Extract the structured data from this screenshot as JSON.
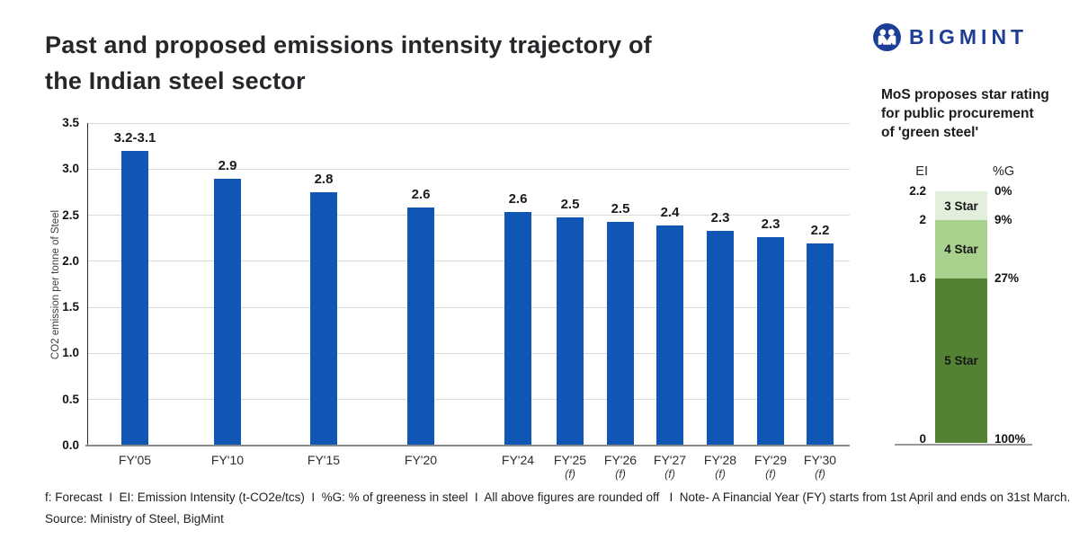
{
  "page": {
    "title_lines": [
      "Past and proposed emissions intensity trajectory of",
      "the Indian steel sector"
    ]
  },
  "logo": {
    "text": "BIGMINT",
    "color": "#1e3e96"
  },
  "side_panel": {
    "heading_lines": [
      "MoS proposes star rating",
      "for public procurement",
      "of 'green steel'"
    ]
  },
  "chart_data": [
    {
      "type": "bar",
      "title": "Past and proposed emissions intensity trajectory of the Indian steel sector",
      "xlabel": "",
      "ylabel": "CO2 emission per tonne of Steel",
      "ylim": [
        0,
        3.5
      ],
      "yticks": [
        "0.0",
        "0.5",
        "1.0",
        "1.5",
        "2.0",
        "2.5",
        "3.0",
        "3.5"
      ],
      "grid": true,
      "legend_position": "none",
      "bar_color": "#1056b4",
      "categories": [
        "FY'05",
        "FY'10",
        "FY'15",
        "FY'20",
        "FY'24",
        "FY'25",
        "FY'26",
        "FY'27",
        "FY'28",
        "FY'29",
        "FY'30"
      ],
      "forecast_flags": [
        false,
        false,
        false,
        false,
        false,
        true,
        true,
        true,
        true,
        true,
        true
      ],
      "forecast_suffix": "(f)",
      "labels": [
        "3.2-3.1",
        "2.9",
        "2.8",
        "2.6",
        "2.6",
        "2.5",
        "2.5",
        "2.4",
        "2.3",
        "2.3",
        "2.2"
      ],
      "values": [
        3.2,
        2.9,
        2.8,
        2.6,
        2.6,
        2.5,
        2.5,
        2.4,
        2.3,
        2.3,
        2.2
      ],
      "drawn_values": [
        3.2,
        2.9,
        2.75,
        2.58,
        2.53,
        2.48,
        2.43,
        2.39,
        2.33,
        2.26,
        2.19
      ]
    },
    {
      "type": "bar",
      "subtype": "single-stacked-column",
      "title": "MoS proposes star rating for public procurement of 'green steel'",
      "left_header": "EI",
      "right_header": "%G",
      "segments": [
        {
          "label": "3 Star",
          "ei_range": [
            2.2,
            2.0
          ],
          "greenness_range": [
            "0%",
            "9%"
          ],
          "color": "#e2efda"
        },
        {
          "label": "4 Star",
          "ei_range": [
            2.0,
            1.6
          ],
          "greenness_range": [
            "9%",
            "27%"
          ],
          "color": "#a9d18e"
        },
        {
          "label": "5 Star",
          "ei_range": [
            1.6,
            0
          ],
          "greenness_range": [
            "27%",
            "100%"
          ],
          "color": "#548235"
        }
      ],
      "boundaries": [
        {
          "ei": "2.2",
          "pct": "0%"
        },
        {
          "ei": "2",
          "pct": "9%"
        },
        {
          "ei": "1.6",
          "pct": "27%"
        },
        {
          "ei": "0",
          "pct": "100%"
        }
      ]
    }
  ],
  "footer": {
    "line1": "f: Forecast  I  EI: Emission Intensity (t-CO2e/tcs)  I  %G: % of greeness in steel  I  All above figures are rounded off   I  Note- A Financial Year (FY) starts from 1st April and ends on 31st March.",
    "line2": "Source: Ministry of Steel, BigMint"
  }
}
